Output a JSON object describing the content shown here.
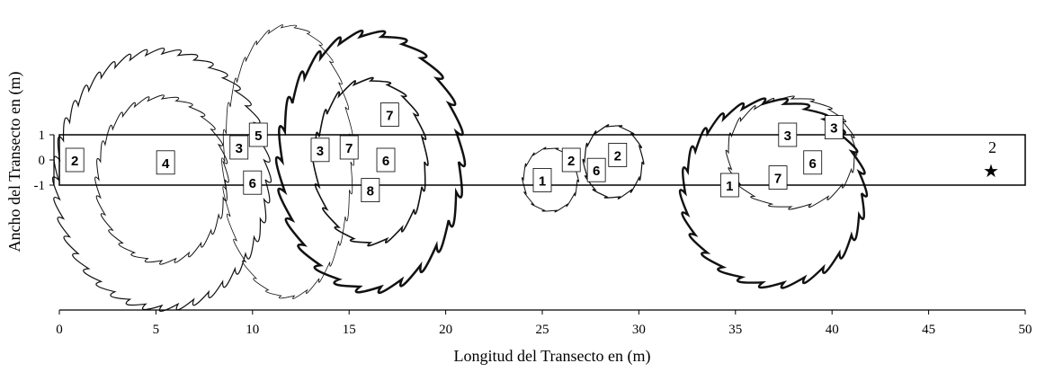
{
  "chart_data": {
    "type": "transect",
    "xlabel": "Longitud del Transecto en (m)",
    "ylabel": "Ancho del Transecto en (m)",
    "xlim": [
      0,
      50
    ],
    "xticks": [
      0,
      5,
      10,
      15,
      20,
      25,
      30,
      35,
      40,
      45,
      50
    ],
    "ylim": [
      -1,
      1
    ],
    "yticks": [
      1,
      0,
      -1
    ],
    "points": [
      {
        "label": "2",
        "x": 0.8,
        "y": 0
      },
      {
        "label": "4",
        "x": 5.5,
        "y": -0.1
      },
      {
        "label": "3",
        "x": 9.3,
        "y": 0.5
      },
      {
        "label": "5",
        "x": 10.3,
        "y": 1
      },
      {
        "label": "6",
        "x": 10.0,
        "y": -0.9
      },
      {
        "label": "3",
        "x": 13.5,
        "y": 0.4
      },
      {
        "label": "7",
        "x": 15.0,
        "y": 0.5
      },
      {
        "label": "7",
        "x": 17.1,
        "y": 1.8
      },
      {
        "label": "6",
        "x": 16.9,
        "y": 0
      },
      {
        "label": "8",
        "x": 16.1,
        "y": -1.2
      },
      {
        "label": "1",
        "x": 25.0,
        "y": -0.8
      },
      {
        "label": "2",
        "x": 26.5,
        "y": 0
      },
      {
        "label": "6",
        "x": 27.8,
        "y": -0.4
      },
      {
        "label": "2",
        "x": 28.9,
        "y": 0.2
      },
      {
        "label": "1",
        "x": 34.7,
        "y": -1.0
      },
      {
        "label": "3",
        "x": 37.7,
        "y": 1.0
      },
      {
        "label": "3",
        "x": 40.1,
        "y": 1.3
      },
      {
        "label": "6",
        "x": 39.0,
        "y": -0.1
      },
      {
        "label": "7",
        "x": 37.2,
        "y": -0.7
      },
      {
        "label": "2",
        "x": 48.3,
        "y": 0.5
      }
    ]
  }
}
